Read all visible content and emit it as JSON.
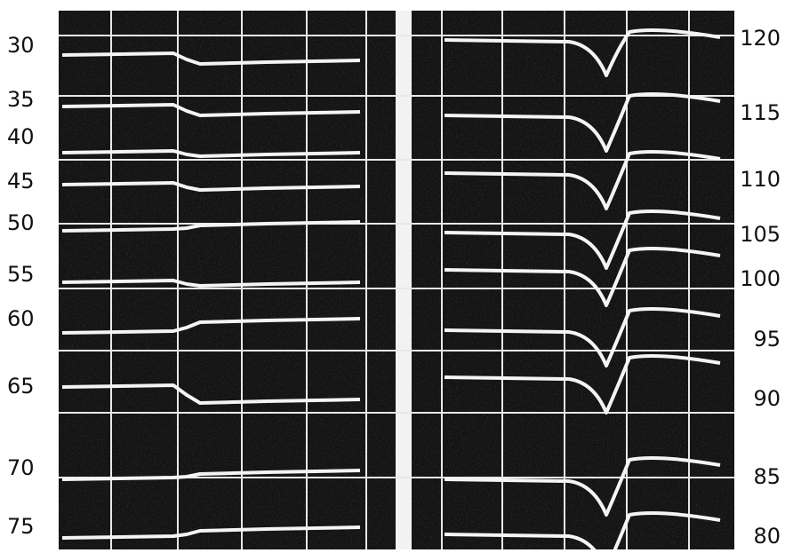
{
  "left_labels": [
    "30",
    "35",
    "40",
    "45",
    "50",
    "55",
    "60",
    "65",
    "70",
    "75"
  ],
  "right_labels": [
    "120",
    "115",
    "110",
    "105",
    "100",
    "95",
    "90",
    "85",
    "80"
  ]
}
